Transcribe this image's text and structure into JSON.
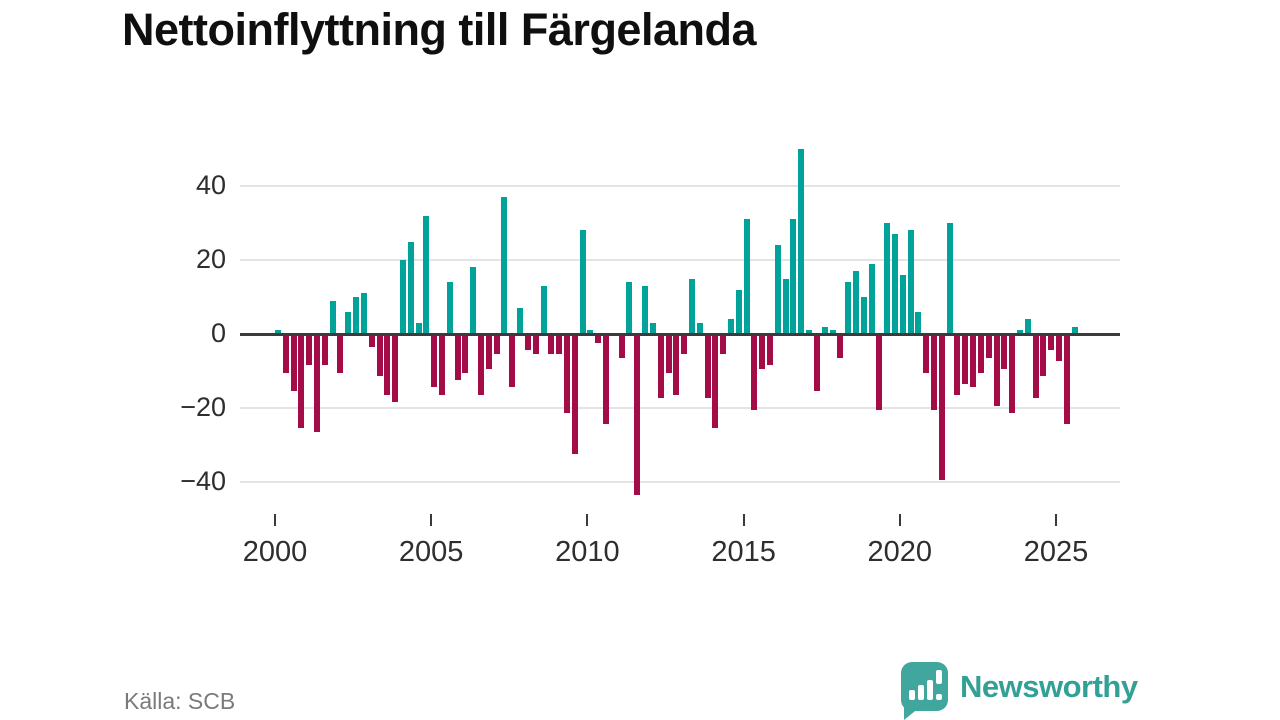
{
  "title": "Nettoinflyttning till Färgelanda",
  "source": "Källa: SCB",
  "branding": {
    "name": "Newsworthy"
  },
  "colors": {
    "positive": "#00A29A",
    "negative": "#A30C46",
    "axis": "#3b3b3b",
    "grid": "#e4e4e4",
    "title": "#0f0f0f",
    "tick_text": "#2e2e2e",
    "source_text": "#7a7a7a",
    "brand": "#33a096"
  },
  "chart_data": {
    "type": "bar",
    "title": "Nettoinflyttning till Färgelanda",
    "xlabel": "",
    "ylabel": "",
    "frequency": "quarterly",
    "grid": true,
    "ylim": [
      -47,
      52
    ],
    "y_ticks": [
      40,
      20,
      0,
      -20,
      -40
    ],
    "y_tick_labels": [
      "40",
      "20",
      "0",
      "−20",
      "−40"
    ],
    "x_tick_years": [
      2000,
      2005,
      2010,
      2015,
      2020,
      2025
    ],
    "categories": [
      "2000Q1",
      "2000Q2",
      "2000Q3",
      "2000Q4",
      "2001Q1",
      "2001Q2",
      "2001Q3",
      "2001Q4",
      "2002Q1",
      "2002Q2",
      "2002Q3",
      "2002Q4",
      "2003Q1",
      "2003Q2",
      "2003Q3",
      "2003Q4",
      "2004Q1",
      "2004Q2",
      "2004Q3",
      "2004Q4",
      "2005Q1",
      "2005Q2",
      "2005Q3",
      "2005Q4",
      "2006Q1",
      "2006Q2",
      "2006Q3",
      "2006Q4",
      "2007Q1",
      "2007Q2",
      "2007Q3",
      "2007Q4",
      "2008Q1",
      "2008Q2",
      "2008Q3",
      "2008Q4",
      "2009Q1",
      "2009Q2",
      "2009Q3",
      "2009Q4",
      "2010Q1",
      "2010Q2",
      "2010Q3",
      "2010Q4",
      "2011Q1",
      "2011Q2",
      "2011Q3",
      "2011Q4",
      "2012Q1",
      "2012Q2",
      "2012Q3",
      "2012Q4",
      "2013Q1",
      "2013Q2",
      "2013Q3",
      "2013Q4",
      "2014Q1",
      "2014Q2",
      "2014Q3",
      "2014Q4",
      "2015Q1",
      "2015Q2",
      "2015Q3",
      "2015Q4",
      "2016Q1",
      "2016Q2",
      "2016Q3",
      "2016Q4",
      "2017Q1",
      "2017Q2",
      "2017Q3",
      "2017Q4",
      "2018Q1",
      "2018Q2",
      "2018Q3",
      "2018Q4",
      "2019Q1",
      "2019Q2",
      "2019Q3",
      "2019Q4",
      "2020Q1",
      "2020Q2",
      "2020Q3",
      "2020Q4",
      "2021Q1",
      "2021Q2",
      "2021Q3",
      "2021Q4",
      "2022Q1",
      "2022Q2",
      "2022Q3",
      "2022Q4",
      "2023Q1",
      "2023Q2",
      "2023Q3",
      "2023Q4",
      "2024Q1",
      "2024Q2",
      "2024Q3",
      "2024Q4",
      "2025Q1",
      "2025Q2",
      "2025Q3"
    ],
    "values": [
      1,
      -10,
      -15,
      -25,
      -8,
      -26,
      -8,
      9,
      -10,
      6,
      10,
      11,
      -3,
      -11,
      -16,
      -18,
      20,
      25,
      3,
      32,
      -14,
      -16,
      14,
      -12,
      -10,
      18,
      -16,
      -9,
      -5,
      37,
      -14,
      7,
      -4,
      -5,
      13,
      -5,
      -5,
      -21,
      -32,
      28,
      1,
      -2,
      -24,
      0,
      -6,
      14,
      -43,
      13,
      3,
      -17,
      -10,
      -16,
      -5,
      15,
      3,
      -17,
      -25,
      -5,
      4,
      12,
      31,
      -20,
      -9,
      -8,
      24,
      15,
      31,
      50,
      1,
      -15,
      2,
      1,
      -6,
      14,
      17,
      10,
      19,
      -20,
      30,
      27,
      16,
      28,
      6,
      -10,
      -20,
      -39,
      30,
      -16,
      -13,
      -14,
      -10,
      -6,
      -19,
      -9,
      -21,
      1,
      4,
      -17,
      -11,
      -4,
      -7,
      -24,
      2
    ]
  }
}
